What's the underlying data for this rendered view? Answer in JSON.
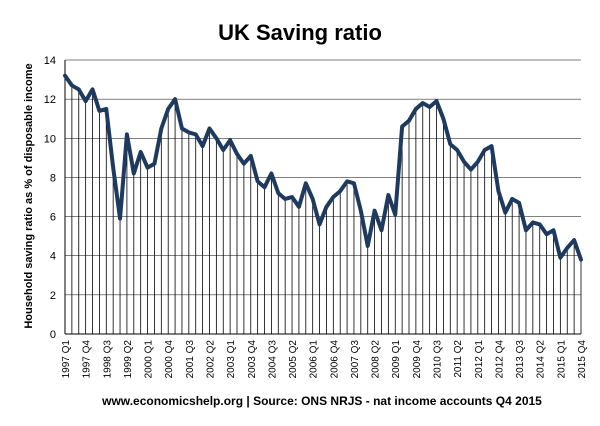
{
  "chart_data": {
    "type": "line",
    "title": "UK Saving ratio",
    "ylabel": "Household saving ratio as % of disposable income",
    "xlabel": "",
    "ylim": [
      0,
      14
    ],
    "yticks": [
      0,
      2,
      4,
      6,
      8,
      10,
      12,
      14
    ],
    "grid": "horizontal",
    "drop_lines": true,
    "source": "www.economicshelp.org | Source: ONS NRJS - nat income accounts Q4 2015",
    "x_tick_labels": [
      "1997 Q1",
      "1997 Q4",
      "1998 Q3",
      "1999 Q2",
      "2000 Q1",
      "2000 Q4",
      "2001 Q3",
      "2002 Q2",
      "2003 Q1",
      "2003 Q4",
      "2004 Q3",
      "2005 Q2",
      "2006 Q1",
      "2006 Q4",
      "2007 Q3",
      "2008 Q2",
      "2009 Q1",
      "2009 Q4",
      "2010 Q3",
      "2011 Q2",
      "2012 Q1",
      "2012 Q4",
      "2013 Q3",
      "2014 Q2",
      "2015 Q1",
      "2015 Q4"
    ],
    "series": [
      {
        "name": "",
        "color": "#1f3a5f",
        "x": [
          "1997 Q1",
          "1997 Q2",
          "1997 Q3",
          "1997 Q4",
          "1998 Q1",
          "1998 Q2",
          "1998 Q3",
          "1998 Q4",
          "1999 Q1",
          "1999 Q2",
          "1999 Q3",
          "1999 Q4",
          "2000 Q1",
          "2000 Q2",
          "2000 Q3",
          "2000 Q4",
          "2001 Q1",
          "2001 Q2",
          "2001 Q3",
          "2001 Q4",
          "2002 Q1",
          "2002 Q2",
          "2002 Q3",
          "2002 Q4",
          "2003 Q1",
          "2003 Q2",
          "2003 Q3",
          "2003 Q4",
          "2004 Q1",
          "2004 Q2",
          "2004 Q3",
          "2004 Q4",
          "2005 Q1",
          "2005 Q2",
          "2005 Q3",
          "2005 Q4",
          "2006 Q1",
          "2006 Q2",
          "2006 Q3",
          "2006 Q4",
          "2007 Q1",
          "2007 Q2",
          "2007 Q3",
          "2007 Q4",
          "2008 Q1",
          "2008 Q2",
          "2008 Q3",
          "2008 Q4",
          "2009 Q1",
          "2009 Q2",
          "2009 Q3",
          "2009 Q4",
          "2010 Q1",
          "2010 Q2",
          "2010 Q3",
          "2010 Q4",
          "2011 Q1",
          "2011 Q2",
          "2011 Q3",
          "2011 Q4",
          "2012 Q1",
          "2012 Q2",
          "2012 Q3",
          "2012 Q4",
          "2013 Q1",
          "2013 Q2",
          "2013 Q3",
          "2013 Q4",
          "2014 Q1",
          "2014 Q2",
          "2014 Q3",
          "2014 Q4",
          "2015 Q1",
          "2015 Q2",
          "2015 Q3",
          "2015 Q4"
        ],
        "values": [
          13.2,
          12.7,
          12.5,
          11.9,
          12.5,
          11.4,
          11.5,
          8.5,
          5.9,
          10.2,
          8.2,
          9.3,
          8.5,
          8.7,
          10.5,
          11.5,
          12.0,
          10.5,
          10.3,
          10.2,
          9.6,
          10.5,
          10.0,
          9.4,
          9.9,
          9.2,
          8.7,
          9.1,
          7.8,
          7.5,
          8.2,
          7.2,
          6.9,
          7.0,
          6.5,
          7.7,
          6.9,
          5.6,
          6.5,
          7.0,
          7.3,
          7.8,
          7.7,
          6.3,
          4.5,
          6.3,
          5.3,
          7.1,
          6.1,
          10.6,
          10.9,
          11.5,
          11.8,
          11.6,
          11.9,
          11.0,
          9.7,
          9.4,
          8.8,
          8.4,
          8.8,
          9.4,
          9.6,
          7.3,
          6.2,
          6.9,
          6.7,
          5.3,
          5.7,
          5.6,
          5.1,
          5.3,
          3.9,
          4.4,
          4.8,
          3.8
        ]
      }
    ]
  }
}
